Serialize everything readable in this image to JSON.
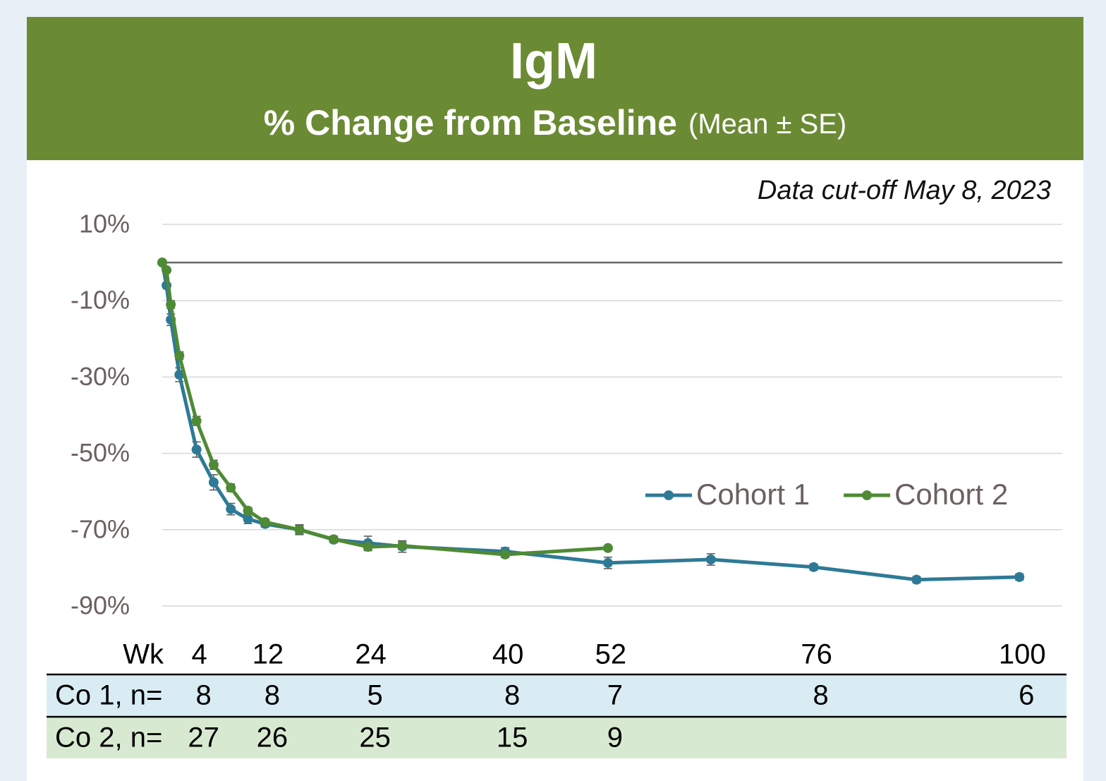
{
  "chart_data": {
    "type": "line",
    "title": "IgM",
    "subtitle": "% Change from Baseline",
    "subtitle_note": "(Mean ± SE)",
    "annotation": "Data cut-off May 8, 2023",
    "xlabel": "Wk",
    "xlim": [
      0,
      105
    ],
    "xticks": [
      4,
      12,
      24,
      40,
      52,
      76,
      100
    ],
    "ylim": [
      -90,
      10
    ],
    "yticks": [
      {
        "value": 10,
        "label": "10%"
      },
      {
        "value": -10,
        "label": "-10%"
      },
      {
        "value": -30,
        "label": "-30%"
      },
      {
        "value": -50,
        "label": "-50%"
      },
      {
        "value": -70,
        "label": "-70%"
      },
      {
        "value": -90,
        "label": "-90%"
      }
    ],
    "reference_line": 0,
    "grid": true,
    "legend_position": "center-right",
    "series": [
      {
        "name": "Cohort 1",
        "color": "#2e7a96",
        "x": [
          0,
          0.5,
          1,
          2,
          4,
          6,
          8,
          10,
          12,
          16,
          20,
          24,
          28,
          40,
          52,
          64,
          76,
          88,
          100
        ],
        "values": [
          0,
          -6,
          -15,
          -29.4,
          -49,
          -57.6,
          -64.6,
          -67.2,
          -68.5,
          -70,
          -72.6,
          -73.5,
          -74.4,
          -75.7,
          -78.7,
          -77.8,
          -79.8,
          -83.1,
          -82.4
        ],
        "errors": [
          0,
          0.5,
          1.5,
          1.8,
          2,
          2,
          1.5,
          1.2,
          0.8,
          1.3,
          0.8,
          1.8,
          1.5,
          1,
          1.5,
          1.5,
          0.8,
          0.8,
          0.8
        ]
      },
      {
        "name": "Cohort 2",
        "color": "#4f8a35",
        "x": [
          0,
          0.5,
          1,
          2,
          4,
          6,
          8,
          10,
          12,
          16,
          20,
          24,
          28,
          40,
          52
        ],
        "values": [
          0,
          -2,
          -11,
          -24.4,
          -41.5,
          -53,
          -59,
          -65,
          -68,
          -70,
          -72.5,
          -74.5,
          -74.2,
          -76.5,
          -74.8
        ],
        "errors": [
          0,
          0.5,
          1,
          1,
          1.2,
          1.2,
          1,
          0.8,
          0.8,
          1,
          0.8,
          1,
          1,
          0.8,
          0.5
        ]
      }
    ],
    "n_table": [
      {
        "label": "Co 1, n=",
        "counts": [
          8,
          8,
          5,
          8,
          7,
          8,
          6
        ]
      },
      {
        "label": "Co 2, n=",
        "counts": [
          27,
          26,
          25,
          15,
          9
        ]
      }
    ]
  }
}
